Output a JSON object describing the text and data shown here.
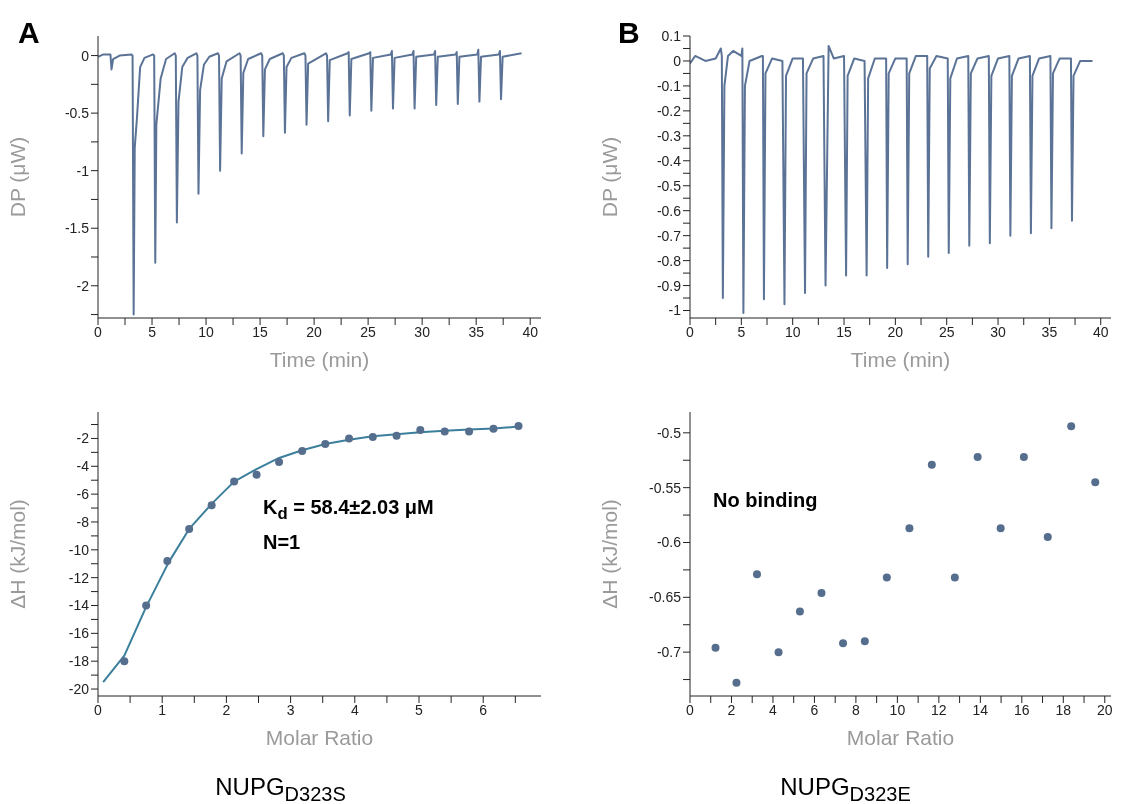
{
  "chart_data": [
    {
      "type": "line",
      "title": "A",
      "xlabel": "Time (min)",
      "ylabel": "DP (μW)",
      "xlim": [
        0,
        41
      ],
      "xticks": [
        0,
        {
          "value": 2.5,
          "label": null
        },
        5,
        {
          "value": 7.5,
          "label": null
        },
        10,
        {
          "value": 12.5,
          "label": null
        },
        15,
        {
          "value": 17.5,
          "label": null
        },
        20,
        {
          "value": 22.5,
          "label": null
        },
        25,
        {
          "value": 27.5,
          "label": null
        },
        30,
        {
          "value": 32.5,
          "label": null
        },
        35,
        {
          "value": 37.5,
          "label": null
        },
        40
      ],
      "ylim": [
        -2.28,
        0.17
      ],
      "yticks": [
        {
          "value": -2.25,
          "label": null
        },
        -2,
        {
          "value": -1.75,
          "label": null
        },
        -1.5,
        {
          "value": -1.25,
          "label": null
        },
        -1,
        {
          "value": -0.75,
          "label": null
        },
        -0.5,
        {
          "value": -0.25,
          "label": null
        },
        0
      ],
      "series": [
        {
          "color": "#5b7396",
          "x": [
            0,
            0.5,
            1.15,
            1.25,
            1.4,
            2,
            3.1,
            3.2,
            3.3,
            3.4,
            3.6,
            3.9,
            4.3,
            5.1,
            5.2,
            5.3,
            5.4,
            5.8,
            6.3,
            7.1,
            7.2,
            7.3,
            7.45,
            7.8,
            8.3,
            9.1,
            9.2,
            9.3,
            9.45,
            9.8,
            10.3,
            11.1,
            11.2,
            11.3,
            11.45,
            11.9,
            13.1,
            13.2,
            13.3,
            13.45,
            13.9,
            15.1,
            15.2,
            15.3,
            15.45,
            15.9,
            17.1,
            17.2,
            17.3,
            17.45,
            17.9,
            19.1,
            19.2,
            19.3,
            19.45,
            21.1,
            21.2,
            21.3,
            21.45,
            23.1,
            23.2,
            23.3,
            23.45,
            25.1,
            25.2,
            25.3,
            25.45,
            27.1,
            27.2,
            27.3,
            27.45,
            29.1,
            29.2,
            29.3,
            29.45,
            31.1,
            31.2,
            31.3,
            31.45,
            33.1,
            33.2,
            33.3,
            33.45,
            35.1,
            35.2,
            35.3,
            35.45,
            37.1,
            37.2,
            37.3,
            37.45,
            39.2
          ],
          "values": [
            -0.01,
            0.01,
            0.01,
            -0.12,
            -0.03,
            0,
            0.01,
            0,
            -2.25,
            -0.8,
            -0.55,
            -0.1,
            -0.02,
            0.01,
            0,
            -1.8,
            -0.6,
            -0.2,
            -0.03,
            0.02,
            0,
            -1.45,
            -0.4,
            -0.1,
            -0.02,
            0.02,
            0,
            -1.2,
            -0.3,
            -0.08,
            -0.01,
            0.02,
            0,
            -1.0,
            -0.2,
            -0.05,
            0.02,
            0,
            -0.85,
            -0.15,
            -0.03,
            0.02,
            0,
            -0.7,
            -0.12,
            -0.03,
            0.02,
            0,
            -0.67,
            -0.1,
            -0.02,
            0.02,
            0,
            -0.6,
            -0.07,
            0.02,
            0,
            -0.57,
            -0.04,
            0.02,
            0.03,
            -0.52,
            -0.03,
            0.02,
            0.03,
            -0.48,
            -0.02,
            0.01,
            0.04,
            -0.46,
            -0.02,
            0.01,
            0.04,
            -0.46,
            -0.01,
            0.01,
            0.04,
            -0.43,
            -0.01,
            0.01,
            0.03,
            -0.42,
            -0.01,
            0.01,
            0.05,
            -0.4,
            -0.01,
            0.01,
            0.04,
            -0.38,
            -0.01,
            0.02
          ]
        }
      ]
    },
    {
      "type": "line",
      "title": "B",
      "xlabel": "Time (min)",
      "ylabel": "DP (μW)",
      "xlim": [
        0,
        41
      ],
      "xticks": [
        0,
        {
          "value": 2.5,
          "label": null
        },
        5,
        {
          "value": 7.5,
          "label": null
        },
        10,
        {
          "value": 12.5,
          "label": null
        },
        15,
        {
          "value": 17.5,
          "label": null
        },
        20,
        {
          "value": 22.5,
          "label": null
        },
        25,
        {
          "value": 27.5,
          "label": null
        },
        30,
        {
          "value": 32.5,
          "label": null
        },
        35,
        {
          "value": 37.5,
          "label": null
        },
        40
      ],
      "ylim": [
        -1.03,
        0.1
      ],
      "yticks": [
        -1,
        {
          "value": -0.95,
          "label": null
        },
        -0.9,
        {
          "value": -0.85,
          "label": null
        },
        -0.8,
        {
          "value": -0.75,
          "label": null
        },
        -0.7,
        {
          "value": -0.65,
          "label": null
        },
        -0.6,
        {
          "value": -0.55,
          "label": null
        },
        -0.5,
        {
          "value": -0.45,
          "label": null
        },
        -0.4,
        {
          "value": -0.35,
          "label": null
        },
        -0.3,
        {
          "value": -0.25,
          "label": null
        },
        -0.2,
        {
          "value": -0.15,
          "label": null
        },
        -0.1,
        {
          "value": -0.05,
          "label": null
        },
        0,
        {
          "value": 0.05,
          "label": null
        },
        0.1
      ],
      "series": [
        {
          "color": "#5b7396",
          "x": [
            0,
            0.5,
            1.5,
            2.5,
            3.0,
            3.1,
            3.2,
            3.35,
            3.7,
            4.2,
            5.0,
            5.1,
            5.2,
            5.35,
            5.8,
            7.0,
            7.1,
            7.2,
            7.35,
            8,
            9.0,
            9.2,
            9.35,
            10,
            11.0,
            11.2,
            11.35,
            12,
            13.0,
            13.2,
            13.5,
            14,
            15.0,
            15.2,
            15.35,
            16,
            17,
            17.2,
            17.35,
            18,
            19.1,
            19.2,
            19.35,
            20,
            21.1,
            21.2,
            21.35,
            22,
            23.1,
            23.2,
            23.35,
            24,
            25.1,
            25.2,
            25.35,
            26,
            27.1,
            27.2,
            27.35,
            28,
            29.1,
            29.2,
            29.35,
            30,
            31.1,
            31.2,
            31.35,
            32,
            33.1,
            33.2,
            33.35,
            34,
            35.1,
            35.2,
            35.35,
            36,
            37.1,
            37.2,
            37.35,
            38,
            39.2
          ],
          "values": [
            -0.01,
            0.02,
            0,
            0.01,
            0.05,
            0.02,
            -0.95,
            -0.1,
            0.02,
            0.04,
            0.02,
            0.05,
            -1.01,
            -0.1,
            0,
            0.02,
            0.02,
            -0.955,
            -0.05,
            0.01,
            0,
            -0.975,
            -0.06,
            0.01,
            0.01,
            -0.93,
            -0.05,
            0.01,
            0.02,
            -0.9,
            0.06,
            0.01,
            0.02,
            -0.86,
            -0.06,
            0.01,
            0,
            -0.86,
            -0.07,
            0.01,
            0.01,
            -0.83,
            -0.05,
            0.01,
            0.01,
            -0.815,
            -0.05,
            0.02,
            0.02,
            -0.785,
            -0.03,
            0.02,
            0.01,
            -0.77,
            -0.07,
            0.01,
            0.02,
            -0.74,
            -0.05,
            0.01,
            0.02,
            -0.73,
            -0.06,
            0.01,
            0.02,
            -0.7,
            -0.06,
            0.01,
            0.02,
            -0.69,
            -0.06,
            0.01,
            0.02,
            -0.67,
            -0.05,
            0.01,
            0.01,
            -0.64,
            -0.06,
            0,
            0
          ]
        }
      ]
    },
    {
      "type": "scatter",
      "xlabel": "Molar Ratio",
      "ylabel": "ΔH (kJ/mol)",
      "xlim": [
        0,
        6.9
      ],
      "xticks": [
        0,
        {
          "value": 0.5,
          "label": null
        },
        1,
        {
          "value": 1.5,
          "label": null
        },
        2,
        {
          "value": 2.5,
          "label": null
        },
        3,
        {
          "value": 3.5,
          "label": null
        },
        4,
        {
          "value": 4.5,
          "label": null
        },
        5,
        {
          "value": 5.5,
          "label": null
        },
        6,
        {
          "value": 6.5,
          "label": null
        }
      ],
      "ylim": [
        -20.5,
        -0.1
      ],
      "yticks": [
        -20,
        {
          "value": -19,
          "label": null
        },
        -18,
        {
          "value": -17,
          "label": null
        },
        -16,
        {
          "value": -15,
          "label": null
        },
        -14,
        {
          "value": -13,
          "label": null
        },
        -12,
        {
          "value": -11,
          "label": null
        },
        -10,
        {
          "value": -9,
          "label": null
        },
        -8,
        {
          "value": -7,
          "label": null
        },
        -6,
        {
          "value": -5,
          "label": null
        },
        -4,
        {
          "value": -3,
          "label": null
        },
        -2,
        {
          "value": -1,
          "label": null
        }
      ],
      "annotations": [
        "K$_{d}$ = 58.4±2.03 μM",
        "N=1",
        "NUPG$_{D323S}$"
      ],
      "series": [
        {
          "type": "line",
          "color": "#3b7f9c",
          "x": [
            0.08,
            0.41,
            0.75,
            1.1,
            1.42,
            1.77,
            2.12,
            2.47,
            2.82,
            3.18,
            3.54,
            3.91,
            4.28,
            4.65,
            5.02,
            5.4,
            5.78,
            6.16,
            6.55
          ],
          "values": [
            -19.5,
            -17.6,
            -14.1,
            -10.9,
            -8.5,
            -6.7,
            -5.1,
            -4.2,
            -3.4,
            -2.85,
            -2.4,
            -2.1,
            -1.85,
            -1.7,
            -1.55,
            -1.45,
            -1.35,
            -1.28,
            -1.15
          ]
        },
        {
          "marker": "circle",
          "color": "#566e8e",
          "x": [
            0.41,
            0.75,
            1.08,
            1.42,
            1.77,
            2.12,
            2.47,
            2.82,
            3.18,
            3.54,
            3.91,
            4.28,
            4.65,
            5.02,
            5.4,
            5.78,
            6.16,
            6.55
          ],
          "values": [
            -18,
            -14,
            -10.8,
            -8.5,
            -6.8,
            -5.1,
            -4.6,
            -3.7,
            -2.9,
            -2.4,
            -2.0,
            -1.9,
            -1.8,
            -1.4,
            -1.5,
            -1.5,
            -1.3,
            -1.1
          ]
        }
      ]
    },
    {
      "type": "scatter",
      "xlabel": "Molar Ratio",
      "ylabel": "ΔH (kJ/mol)",
      "xlim": [
        0,
        20.3
      ],
      "xticks": [
        0,
        {
          "value": 1,
          "label": null
        },
        2,
        {
          "value": 3,
          "label": null
        },
        4,
        {
          "value": 5,
          "label": null
        },
        6,
        {
          "value": 7,
          "label": null
        },
        8,
        {
          "value": 9,
          "label": null
        },
        10,
        {
          "value": 11,
          "label": null
        },
        12,
        {
          "value": 13,
          "label": null
        },
        14,
        {
          "value": 15,
          "label": null
        },
        16,
        {
          "value": 17,
          "label": null
        },
        18,
        {
          "value": 19,
          "label": null
        },
        20
      ],
      "ylim": [
        -0.74,
        -0.481
      ],
      "yticks": [
        {
          "value": -0.725,
          "label": null
        },
        -0.7,
        {
          "value": -0.675,
          "label": null
        },
        -0.65,
        {
          "value": -0.625,
          "label": null
        },
        -0.6,
        {
          "value": -0.575,
          "label": null
        },
        -0.55,
        {
          "value": -0.525,
          "label": null
        },
        -0.5
      ],
      "annotations": [
        "No binding",
        "NUPG$_{D323E}$"
      ],
      "series": [
        {
          "marker": "circle",
          "color": "#566e8e",
          "x": [
            1.23,
            2.24,
            3.23,
            4.27,
            5.3,
            6.34,
            7.38,
            8.43,
            9.49,
            10.58,
            11.66,
            12.77,
            13.87,
            14.98,
            16.1,
            17.25,
            18.38,
            19.54
          ],
          "values": [
            -0.696,
            -0.728,
            -0.629,
            -0.7,
            -0.663,
            -0.646,
            -0.692,
            -0.69,
            -0.632,
            -0.587,
            -0.529,
            -0.632,
            -0.522,
            -0.587,
            -0.522,
            -0.595,
            -0.494,
            -0.545
          ]
        }
      ]
    }
  ]
}
